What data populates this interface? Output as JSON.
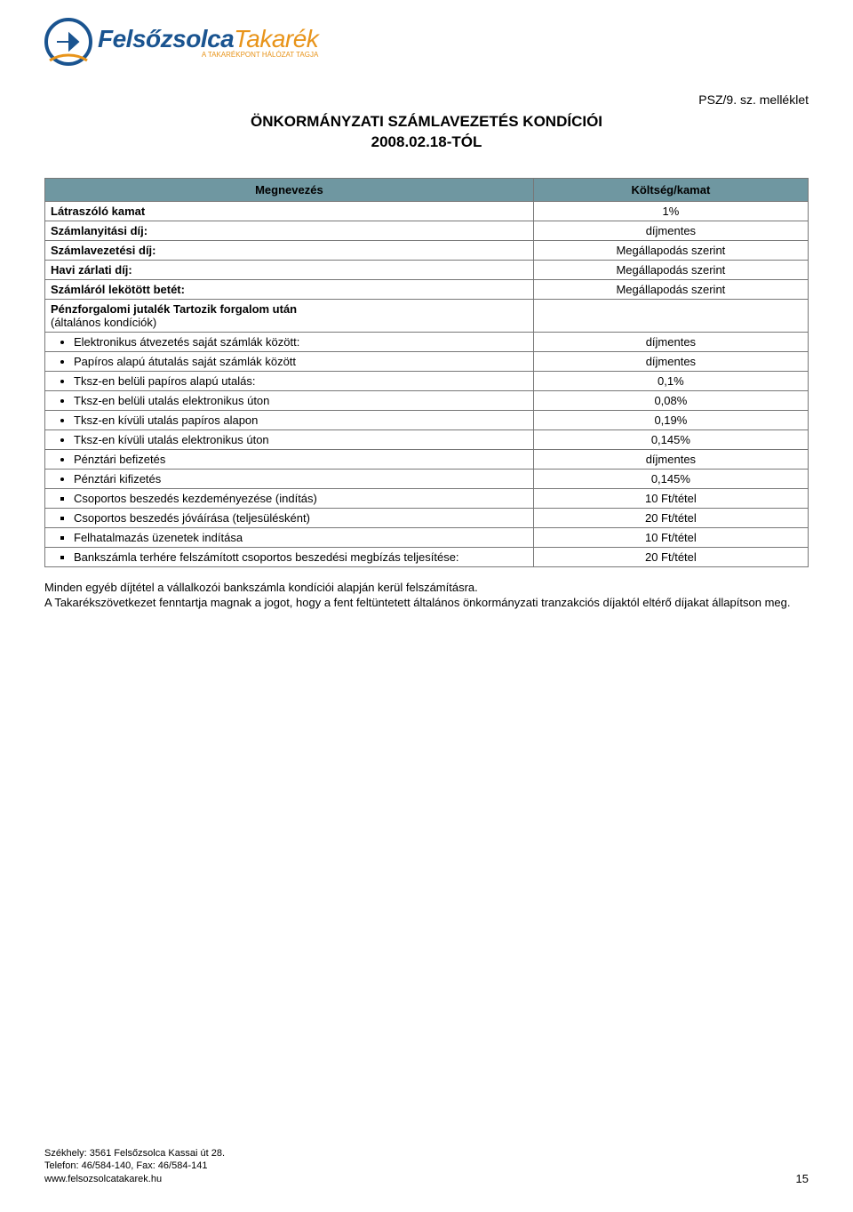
{
  "logo": {
    "text_primary": "Felsőzsolca",
    "text_secondary": "Takarék",
    "subtitle": "A TAKARÉKPONT HÁLÓZAT TAGJA"
  },
  "header_right": "PSZ/9. sz. melléklet",
  "title_line1": "ÖNKORMÁNYZATI SZÁMLAVEZETÉS KONDÍCIÓI",
  "title_line2": "2008.02.18-TÓL",
  "table": {
    "header_left": "Megnevezés",
    "header_right": "Költség/kamat",
    "rows_top": [
      {
        "label": "Látraszóló kamat",
        "value": "1%",
        "bold": true
      },
      {
        "label": "Számlanyitási díj:",
        "value": "díjmentes",
        "bold": true
      },
      {
        "label": "Számlavezetési díj:",
        "value": "Megállapodás szerint",
        "bold": true
      },
      {
        "label": "Havi zárlati díj:",
        "value": "Megállapodás szerint",
        "bold": true
      },
      {
        "label": "Számláról lekötött betét:",
        "value": "Megállapodás szerint",
        "bold": true
      }
    ],
    "group_label_line1": "Pénzforgalomi jutalék Tartozik forgalom után",
    "group_label_line2": "(általános kondíciók)",
    "rows_bullets_round": [
      {
        "label": "Elektronikus átvezetés saját számlák között:",
        "value": "díjmentes"
      },
      {
        "label": "Papíros alapú átutalás saját számlák között",
        "value": "díjmentes"
      },
      {
        "label": "Tksz-en belüli papíros alapú utalás:",
        "value": "0,1%"
      },
      {
        "label": "Tksz-en belüli  utalás elektronikus úton",
        "value": "0,08%"
      },
      {
        "label": "Tksz-en kívüli utalás papíros alapon",
        "value": "0,19%"
      },
      {
        "label": "Tksz-en kívüli utalás elektronikus úton",
        "value": "0,145%"
      },
      {
        "label": "Pénztári befizetés",
        "value": "díjmentes"
      },
      {
        "label": "Pénztári kifizetés",
        "value": "0,145%"
      }
    ],
    "rows_bullets_square": [
      {
        "label": "Csoportos beszedés kezdeményezése (indítás)",
        "value": "10 Ft/tétel"
      },
      {
        "label": "Csoportos beszedés jóváírása (teljesülésként)",
        "value": "20 Ft/tétel"
      },
      {
        "label": "Felhatalmazás üzenetek indítása",
        "value": "10 Ft/tétel"
      },
      {
        "label": "Bankszámla terhére felszámított csoportos beszedési megbízás teljesítése:",
        "value": "20 Ft/tétel"
      }
    ]
  },
  "notes_line1": "Minden egyéb díjtétel a vállalkozói bankszámla kondíciói alapján kerül felszámításra.",
  "notes_line2": "A Takarékszövetkezet fenntartja magnak a jogot, hogy a fent feltüntetett általános önkormányzati tranzakciós díjaktól eltérő díjakat állapítson meg.",
  "footer": {
    "address": "Székhely: 3561 Felsőzsolca Kassai út 28.",
    "phone": "Telefon: 46/584-140, Fax: 46/584-141",
    "url": "www.felsozsolcatakarek.hu",
    "page": "15"
  },
  "colors": {
    "logo_primary": "#1a5490",
    "logo_secondary": "#e8941a",
    "table_header_bg": "#6f97a1",
    "border": "#777777",
    "text": "#000000",
    "background": "#ffffff"
  }
}
